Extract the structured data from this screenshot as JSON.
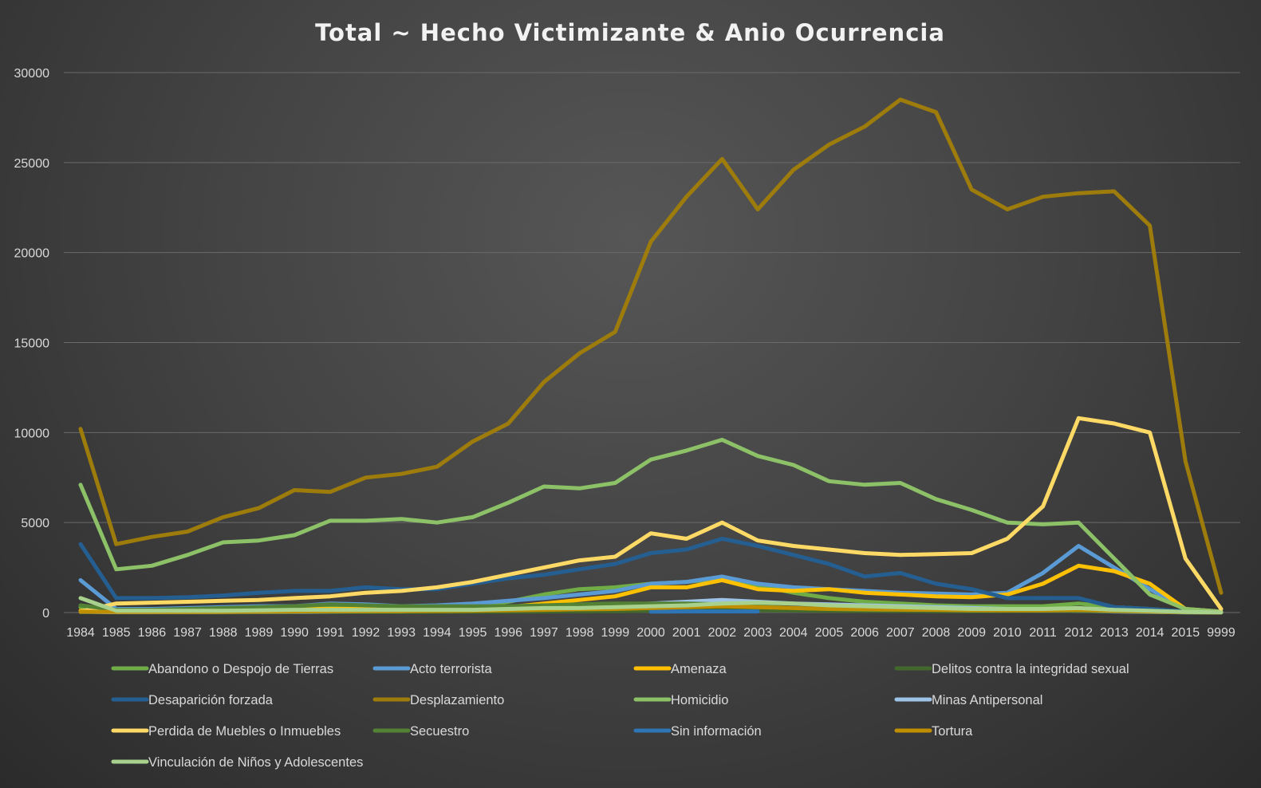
{
  "chart_data": {
    "type": "line",
    "title": "Total ~ Hecho Victimizante & Anio Ocurrencia",
    "xlabel": "",
    "ylabel": "",
    "ylim": [
      0,
      30000
    ],
    "yticks": [
      "0",
      "5000",
      "10000",
      "15000",
      "20000",
      "25000",
      "30000"
    ],
    "grid": true,
    "legend_position": "bottom",
    "x": [
      "1984",
      "1985",
      "1986",
      "1987",
      "1988",
      "1989",
      "1990",
      "1991",
      "1992",
      "1993",
      "1994",
      "1995",
      "1996",
      "1997",
      "1998",
      "1999",
      "2000",
      "2001",
      "2002",
      "2003",
      "2004",
      "2005",
      "2006",
      "2007",
      "2008",
      "2009",
      "2010",
      "2011",
      "2012",
      "2013",
      "2014",
      "2015",
      "9999"
    ],
    "series": [
      {
        "name": "Abandono o Despojo de Tierras",
        "color": "#70ad47",
        "values": [
          300,
          100,
          100,
          100,
          100,
          150,
          200,
          250,
          300,
          300,
          300,
          350,
          600,
          1000,
          1300,
          1400,
          1600,
          1700,
          1900,
          1500,
          1100,
          800,
          600,
          500,
          400,
          350,
          350,
          350,
          500,
          300,
          200,
          50,
          10
        ]
      },
      {
        "name": "Acto terrorista",
        "color": "#5b9bd5",
        "values": [
          1800,
          200,
          200,
          250,
          300,
          350,
          350,
          500,
          450,
          350,
          400,
          500,
          650,
          800,
          1000,
          1200,
          1600,
          1700,
          2000,
          1600,
          1400,
          1300,
          1200,
          1100,
          1050,
          1000,
          1100,
          2200,
          3700,
          2500,
          1300,
          200,
          20
        ]
      },
      {
        "name": "Amenaza",
        "color": "#ffc000",
        "values": [
          100,
          100,
          100,
          100,
          120,
          150,
          200,
          200,
          200,
          200,
          200,
          250,
          300,
          500,
          700,
          900,
          1400,
          1400,
          1800,
          1300,
          1200,
          1300,
          1100,
          1000,
          900,
          850,
          1000,
          1600,
          2600,
          2300,
          1600,
          200,
          50
        ]
      },
      {
        "name": "Delitos contra la integridad sexual",
        "color": "#43682b",
        "values": [
          20,
          10,
          10,
          10,
          15,
          20,
          25,
          30,
          30,
          35,
          40,
          45,
          50,
          60,
          70,
          80,
          100,
          110,
          130,
          120,
          110,
          100,
          90,
          90,
          80,
          80,
          90,
          110,
          150,
          120,
          80,
          20,
          5
        ]
      },
      {
        "name": "Desaparición forzada",
        "color": "#255e91",
        "values": [
          3800,
          800,
          800,
          850,
          950,
          1100,
          1200,
          1200,
          1400,
          1300,
          1300,
          1600,
          1900,
          2100,
          2400,
          2700,
          3300,
          3500,
          4100,
          3700,
          3200,
          2700,
          2000,
          2200,
          1600,
          1300,
          800,
          800,
          800,
          300,
          200,
          50,
          10
        ]
      },
      {
        "name": "Desplazamiento",
        "color": "#9e7c0c",
        "values": [
          10200,
          3800,
          4200,
          4500,
          5300,
          5800,
          6800,
          6700,
          7500,
          7700,
          8100,
          9500,
          10500,
          12800,
          14400,
          15600,
          20600,
          23100,
          25200,
          22400,
          24600,
          26000,
          27000,
          28500,
          27800,
          23500,
          22400,
          23100,
          23300,
          23400,
          21500,
          8400,
          1100
        ]
      },
      {
        "name": "Homicidio",
        "color": "#8cc168",
        "values": [
          7100,
          2400,
          2600,
          3200,
          3900,
          4000,
          4300,
          5100,
          5100,
          5200,
          5000,
          5300,
          6100,
          7000,
          6900,
          7200,
          8500,
          9000,
          9600,
          8700,
          8200,
          7300,
          7100,
          7200,
          6300,
          5700,
          5000,
          4900,
          5000,
          3000,
          1000,
          200,
          50
        ]
      },
      {
        "name": "Minas Antipersonal",
        "color": "#9dc3e6",
        "values": [
          50,
          20,
          20,
          25,
          30,
          40,
          50,
          60,
          70,
          80,
          90,
          120,
          150,
          200,
          300,
          400,
          500,
          600,
          700,
          600,
          500,
          450,
          400,
          350,
          300,
          250,
          200,
          150,
          100,
          60,
          30,
          10,
          5
        ]
      },
      {
        "name": "Perdida de Muebles o Inmuebles",
        "color": "#ffd966",
        "values": [
          50,
          500,
          550,
          600,
          650,
          700,
          800,
          900,
          1100,
          1200,
          1400,
          1700,
          2100,
          2500,
          2900,
          3100,
          4400,
          4100,
          5000,
          4000,
          3700,
          3500,
          3300,
          3200,
          3250,
          3300,
          4100,
          5900,
          10800,
          10500,
          10000,
          3000,
          200
        ]
      },
      {
        "name": "Secuestro",
        "color": "#548235",
        "values": [
          400,
          150,
          150,
          200,
          250,
          300,
          350,
          450,
          400,
          350,
          350,
          350,
          350,
          400,
          450,
          500,
          500,
          500,
          450,
          350,
          250,
          200,
          150,
          150,
          150,
          100,
          100,
          100,
          100,
          80,
          50,
          10,
          5
        ]
      },
      {
        "name": "Sin información",
        "color": "#2e75b6",
        "values": [
          null,
          null,
          null,
          null,
          null,
          null,
          null,
          null,
          null,
          null,
          null,
          null,
          null,
          null,
          null,
          null,
          50,
          60,
          60,
          60,
          null,
          null,
          null,
          null,
          null,
          null,
          null,
          null,
          null,
          null,
          null,
          null,
          null
        ]
      },
      {
        "name": "Tortura",
        "color": "#bf8f00",
        "values": [
          50,
          30,
          30,
          30,
          40,
          50,
          60,
          70,
          80,
          80,
          90,
          100,
          120,
          150,
          180,
          200,
          250,
          300,
          350,
          300,
          250,
          200,
          180,
          160,
          150,
          130,
          120,
          120,
          150,
          100,
          60,
          20,
          5
        ]
      },
      {
        "name": "Vinculación de Niños y Adolescentes",
        "color": "#a9d18e",
        "values": [
          800,
          100,
          100,
          100,
          100,
          120,
          150,
          150,
          150,
          150,
          150,
          150,
          200,
          250,
          250,
          300,
          350,
          400,
          500,
          550,
          500,
          400,
          350,
          300,
          250,
          200,
          200,
          200,
          250,
          150,
          100,
          30,
          10
        ]
      }
    ]
  }
}
